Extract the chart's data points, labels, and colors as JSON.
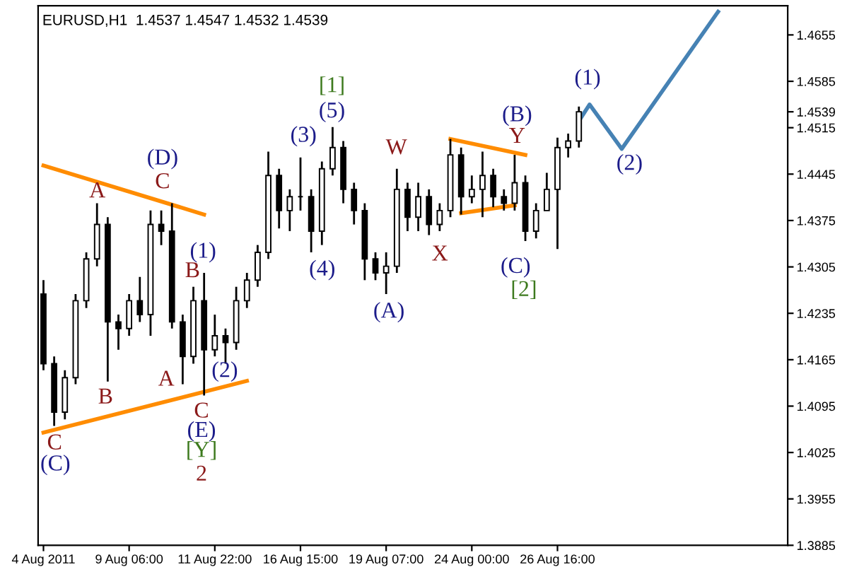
{
  "chart_data": {
    "type": "candlestick",
    "title": "EURUSD,H1  1.4537 1.4547 1.4532 1.4539",
    "categories": [
      "4 Aug 2011",
      null,
      null,
      null,
      null,
      null,
      null,
      null,
      "9 Aug 06:00",
      null,
      null,
      null,
      null,
      null,
      null,
      null,
      "11 Aug 22:00",
      null,
      null,
      null,
      null,
      null,
      null,
      null,
      "16 Aug 15:00",
      null,
      null,
      null,
      null,
      null,
      null,
      null,
      "19 Aug 07:00",
      null,
      null,
      null,
      null,
      null,
      null,
      null,
      "24 Aug 00:00",
      null,
      null,
      null,
      null,
      null,
      null,
      null,
      "26 Aug 16:00",
      null,
      null,
      null,
      null,
      null,
      null,
      null,
      null,
      null,
      null,
      null,
      null,
      null,
      null,
      null,
      null,
      null,
      null,
      null,
      null,
      null
    ],
    "ohlc": [
      [
        1.4264,
        1.4285,
        1.4149,
        1.4159
      ],
      [
        1.4159,
        1.417,
        1.4065,
        1.4086
      ],
      [
        1.4086,
        1.4149,
        1.4075,
        1.4138
      ],
      [
        1.4138,
        1.4264,
        1.4128,
        1.4254
      ],
      [
        1.4254,
        1.4327,
        1.4243,
        1.4317
      ],
      [
        1.4317,
        1.4401,
        1.4306,
        1.4369
      ],
      [
        1.4369,
        1.438,
        1.4132,
        1.4222
      ],
      [
        1.4222,
        1.4233,
        1.418,
        1.4212
      ],
      [
        1.4212,
        1.4264,
        1.4201,
        1.4254
      ],
      [
        1.4254,
        1.429,
        1.4222,
        1.4233
      ],
      [
        1.4233,
        1.439,
        1.4201,
        1.4369
      ],
      [
        1.4369,
        1.439,
        1.4338,
        1.4359
      ],
      [
        1.4359,
        1.4401,
        1.4212,
        1.4222
      ],
      [
        1.4222,
        1.4233,
        1.4128,
        1.417
      ],
      [
        1.417,
        1.4275,
        1.4159,
        1.4254
      ],
      [
        1.4254,
        1.4296,
        1.4111,
        1.418
      ],
      [
        1.418,
        1.4233,
        1.417,
        1.4201
      ],
      [
        1.4201,
        1.4212,
        1.4159,
        1.4191
      ],
      [
        1.4191,
        1.4275,
        1.418,
        1.4254
      ],
      [
        1.4254,
        1.4296,
        1.4243,
        1.4285
      ],
      [
        1.4285,
        1.4338,
        1.4275,
        1.4327
      ],
      [
        1.4327,
        1.4479,
        1.4317,
        1.4443
      ],
      [
        1.4443,
        1.4453,
        1.4363,
        1.439
      ],
      [
        1.439,
        1.4422,
        1.4359,
        1.4411
      ],
      [
        1.4411,
        1.447,
        1.439,
        1.4411
      ],
      [
        1.4411,
        1.4422,
        1.4327,
        1.4359
      ],
      [
        1.4359,
        1.4464,
        1.4338,
        1.4453
      ],
      [
        1.4453,
        1.4516,
        1.4443,
        1.4485
      ],
      [
        1.4485,
        1.4495,
        1.4401,
        1.4422
      ],
      [
        1.4422,
        1.4432,
        1.4369,
        1.439
      ],
      [
        1.439,
        1.4401,
        1.4285,
        1.4317
      ],
      [
        1.4317,
        1.4327,
        1.4285,
        1.4296
      ],
      [
        1.4296,
        1.4327,
        1.4264,
        1.4306
      ],
      [
        1.4306,
        1.4453,
        1.4296,
        1.4422
      ],
      [
        1.4422,
        1.4432,
        1.4359,
        1.438
      ],
      [
        1.438,
        1.4432,
        1.4359,
        1.4411
      ],
      [
        1.4411,
        1.4422,
        1.4353,
        1.4369
      ],
      [
        1.4369,
        1.4401,
        1.4359,
        1.439
      ],
      [
        1.439,
        1.4498,
        1.438,
        1.4474
      ],
      [
        1.4474,
        1.4485,
        1.4384,
        1.4411
      ],
      [
        1.4411,
        1.4443,
        1.4401,
        1.4422
      ],
      [
        1.4422,
        1.4479,
        1.438,
        1.4443
      ],
      [
        1.4443,
        1.4453,
        1.4395,
        1.4411
      ],
      [
        1.4411,
        1.4422,
        1.439,
        1.4401
      ],
      [
        1.4401,
        1.4474,
        1.439,
        1.4432
      ],
      [
        1.4432,
        1.4443,
        1.4344,
        1.4359
      ],
      [
        1.4359,
        1.4401,
        1.4348,
        1.439
      ],
      [
        1.439,
        1.4447,
        1.439,
        1.4422
      ],
      [
        1.4422,
        1.45,
        1.4332,
        1.4485
      ],
      [
        1.4485,
        1.4506,
        1.447,
        1.4495
      ],
      [
        1.4495,
        1.4547,
        1.4485,
        1.4539
      ],
      null,
      null,
      null,
      null,
      null,
      null,
      null,
      null,
      null,
      null,
      null,
      null,
      null,
      null,
      null,
      null,
      null,
      null,
      null
    ],
    "color": "#000000",
    "series": [
      {
        "type": "line",
        "color": "#ff8c00",
        "values": [
          1.4458,
          null,
          null,
          null,
          null,
          null,
          null,
          null,
          null,
          null,
          null,
          null,
          null,
          null,
          null,
          1.4384,
          null,
          null,
          null,
          null,
          null,
          null,
          null,
          null,
          null,
          null,
          null,
          null,
          null,
          null,
          null,
          null,
          null,
          null,
          null,
          null,
          null,
          null,
          null,
          null,
          null,
          null,
          null,
          null,
          null,
          null,
          null,
          null,
          null,
          null,
          null,
          null,
          null,
          null,
          null,
          null,
          null,
          null,
          null,
          null,
          null,
          null,
          null,
          null,
          null,
          null,
          null,
          null,
          null,
          null
        ]
      },
      {
        "type": "line",
        "color": "#ff8c00",
        "values": [
          1.4055,
          null,
          null,
          null,
          null,
          null,
          null,
          null,
          null,
          null,
          null,
          null,
          null,
          null,
          null,
          null,
          null,
          null,
          null,
          1.4133,
          null,
          null,
          null,
          null,
          null,
          null,
          null,
          null,
          null,
          null,
          null,
          null,
          null,
          null,
          null,
          null,
          null,
          null,
          null,
          null,
          null,
          null,
          null,
          null,
          null,
          null,
          null,
          null,
          null,
          null,
          null,
          null,
          null,
          null,
          null,
          null,
          null,
          null,
          null,
          null,
          null,
          null,
          null,
          null,
          null,
          null,
          null,
          null,
          null,
          null
        ]
      },
      {
        "type": "line",
        "color": "#ff8c00",
        "values": [
          null,
          null,
          null,
          null,
          null,
          null,
          null,
          null,
          null,
          null,
          null,
          null,
          null,
          null,
          null,
          null,
          null,
          null,
          null,
          null,
          null,
          null,
          null,
          null,
          null,
          null,
          null,
          null,
          null,
          null,
          null,
          null,
          null,
          null,
          null,
          null,
          null,
          null,
          1.4498,
          null,
          null,
          null,
          null,
          null,
          null,
          1.4474,
          null,
          null,
          null,
          null,
          null,
          null,
          null,
          null,
          null,
          null,
          null,
          null,
          null,
          null,
          null,
          null,
          null,
          null,
          null,
          null,
          null,
          null,
          null,
          null
        ]
      },
      {
        "type": "line",
        "color": "#ff8c00",
        "values": [
          null,
          null,
          null,
          null,
          null,
          null,
          null,
          null,
          null,
          null,
          null,
          null,
          null,
          null,
          null,
          null,
          null,
          null,
          null,
          null,
          null,
          null,
          null,
          null,
          null,
          null,
          null,
          null,
          null,
          null,
          null,
          null,
          null,
          null,
          null,
          null,
          null,
          null,
          null,
          1.4386,
          null,
          null,
          null,
          null,
          1.4398,
          null,
          null,
          null,
          null,
          null,
          null,
          null,
          null,
          null,
          null,
          null,
          null,
          null,
          null,
          null,
          null,
          null,
          null,
          null,
          null,
          null,
          null,
          null,
          null,
          null
        ]
      },
      {
        "type": "line",
        "color": "#4682b4",
        "values": [
          null,
          null,
          null,
          null,
          null,
          null,
          null,
          null,
          null,
          null,
          null,
          null,
          null,
          null,
          null,
          null,
          null,
          null,
          null,
          null,
          null,
          null,
          null,
          null,
          null,
          null,
          null,
          null,
          null,
          null,
          null,
          null,
          null,
          null,
          null,
          null,
          null,
          null,
          null,
          null,
          null,
          null,
          null,
          null,
          null,
          null,
          null,
          null,
          null,
          null,
          1.4525,
          1.455,
          null,
          null,
          1.4483,
          null,
          null,
          null,
          null,
          null,
          null,
          null,
          null,
          1.469,
          null,
          null,
          null,
          null,
          null,
          null
        ]
      }
    ],
    "annotations": [
      "(C)",
      "C",
      "B",
      "A",
      "(D)",
      "C",
      "A",
      "(1)",
      "B",
      "(2)",
      "C",
      "(E)",
      "[Y]",
      "2",
      "(3)",
      "[1]",
      "(5)",
      "(4)",
      "W",
      "(A)",
      "X",
      "(B)",
      "Y",
      "(C)",
      "[2]",
      "(1)",
      "(2)"
    ],
    "ylim": [
      1.3885,
      1.4699
    ],
    "yticks": [
      {
        "value": 1.3885,
        "label": "1.3885"
      },
      {
        "value": 1.3955,
        "label": "1.3955"
      },
      {
        "value": 1.4025,
        "label": "1.4025"
      },
      {
        "value": 1.4095,
        "label": "1.4095"
      },
      {
        "value": 1.4165,
        "label": "1.4165"
      },
      {
        "value": 1.4235,
        "label": "1.4235"
      },
      {
        "value": 1.4305,
        "label": "1.4305"
      },
      {
        "value": 1.4375,
        "label": "1.4375"
      },
      {
        "value": 1.4445,
        "label": "1.4445"
      },
      {
        "value": 1.4515,
        "label": "1.4515"
      },
      {
        "value": 1.4539,
        "label": "1.4539"
      },
      {
        "value": 1.4585,
        "label": "1.4585"
      },
      {
        "value": 1.4655,
        "label": "1.4655"
      }
    ],
    "grid": false,
    "legend": false
  }
}
